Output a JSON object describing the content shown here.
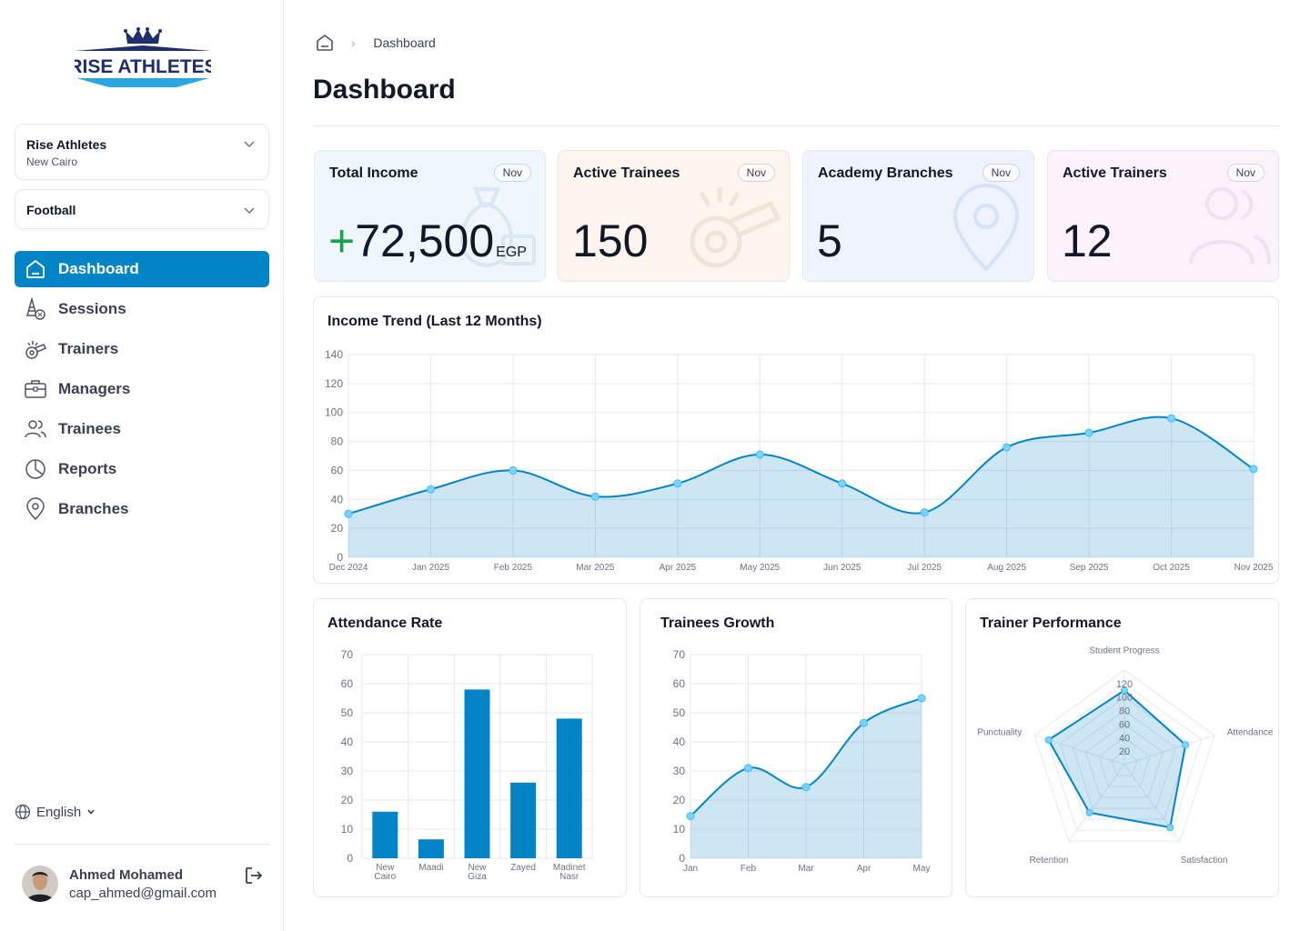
{
  "brand": {
    "logo_text": "RISE ATHLETES",
    "primary": "#0284c7",
    "logo_navy": "#1e2f6b",
    "logo_blue": "#29a8e0"
  },
  "org_select": {
    "name": "Rise Athletes",
    "location": "New Cairo",
    "icon": "chevron-down-icon"
  },
  "sport_select": {
    "value": "Football",
    "icon": "chevron-down-icon"
  },
  "nav": [
    {
      "label": "Dashboard",
      "icon": "home-icon",
      "active": true
    },
    {
      "label": "Sessions",
      "icon": "cone-ball-icon",
      "active": false
    },
    {
      "label": "Trainers",
      "icon": "whistle-icon",
      "active": false
    },
    {
      "label": "Managers",
      "icon": "briefcase-icon",
      "active": false
    },
    {
      "label": "Trainees",
      "icon": "users-icon",
      "active": false
    },
    {
      "label": "Reports",
      "icon": "pie-chart-icon",
      "active": false
    },
    {
      "label": "Branches",
      "icon": "map-pin-icon",
      "active": false
    }
  ],
  "language": {
    "label": "English",
    "icon": "globe-icon"
  },
  "user": {
    "name": "Ahmed Mohamed",
    "email": "cap_ahmed@gmail.com",
    "logout_icon": "logout-icon"
  },
  "breadcrumb": {
    "home_icon": "home-icon",
    "current": "Dashboard"
  },
  "page_title": "Dashboard",
  "stats": [
    {
      "title": "Total Income",
      "badge": "Nov",
      "prefix": "+",
      "value": "72,500",
      "unit": "EGP",
      "bg": "#eff6fc",
      "icon": "money-bag-icon"
    },
    {
      "title": "Active Trainees",
      "badge": "Nov",
      "value": "150",
      "bg": "#fdf5ee",
      "icon": "whistle-icon"
    },
    {
      "title": "Academy Branches",
      "badge": "Nov",
      "value": "5",
      "bg": "#eef3fd",
      "icon": "map-pin-icon"
    },
    {
      "title": "Active Trainers",
      "badge": "Nov",
      "value": "12",
      "bg": "#fcf2fb",
      "icon": "users-icon"
    }
  ],
  "chart_data": [
    {
      "type": "area",
      "title": "Income Trend (Last 12 Months)",
      "categories": [
        "Dec 2024",
        "Jan 2025",
        "Feb 2025",
        "Mar 2025",
        "Apr 2025",
        "May 2025",
        "Jun 2025",
        "Jul 2025",
        "Aug 2025",
        "Sep 2025",
        "Oct 2025",
        "Nov 2025"
      ],
      "values": [
        30,
        47,
        60,
        42,
        51,
        71,
        51,
        31,
        76,
        86,
        96,
        61
      ],
      "ylim": [
        0,
        140
      ],
      "yticks": [
        0,
        20,
        40,
        60,
        80,
        100,
        120,
        140
      ],
      "grid": true,
      "color": "#0284c7"
    },
    {
      "type": "bar",
      "title": "Attendance Rate",
      "categories": [
        "New Cairo",
        "Maadi",
        "New Giza",
        "Zayed",
        "Madinet Nasr"
      ],
      "values": [
        16,
        6.5,
        58,
        26,
        48
      ],
      "ylim": [
        0,
        70
      ],
      "yticks": [
        0,
        10,
        20,
        30,
        40,
        50,
        60,
        70
      ],
      "grid": true,
      "color": "#0284c7"
    },
    {
      "type": "area",
      "title": "Trainees Growth",
      "categories": [
        "Jan",
        "Feb",
        "Mar",
        "Apr",
        "May"
      ],
      "values": [
        14.5,
        31,
        24.5,
        46.5,
        55
      ],
      "ylim": [
        0,
        70
      ],
      "yticks": [
        0,
        10,
        20,
        30,
        40,
        50,
        60,
        70
      ],
      "grid": true,
      "color": "#0284c7"
    },
    {
      "type": "radar",
      "title": "Trainer Performance",
      "axes": [
        "Student Progress",
        "Attendance",
        "Satisfaction",
        "Retention",
        "Punctuality"
      ],
      "values": [
        110,
        95,
        115,
        88,
        118
      ],
      "rlim": [
        0,
        140
      ],
      "rticks": [
        20,
        40,
        60,
        80,
        100,
        120
      ],
      "color": "#0284c7"
    }
  ]
}
